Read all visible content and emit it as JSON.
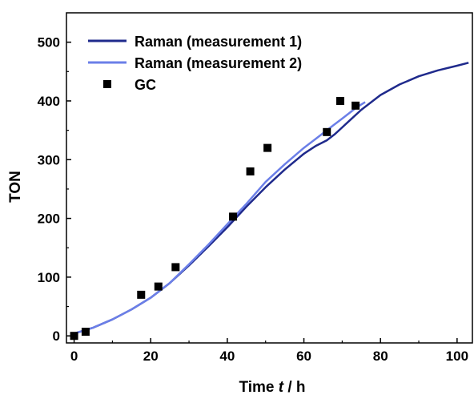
{
  "chart_data": {
    "type": "line",
    "xlabel_prefix": "Time ",
    "xlabel_var": "t",
    "xlabel_suffix": " / h",
    "ylabel": "TON",
    "xlim": [
      -2,
      104
    ],
    "ylim": [
      -12,
      550
    ],
    "xticks": [
      0,
      20,
      40,
      60,
      80,
      100
    ],
    "yticks": [
      0,
      100,
      200,
      300,
      400,
      500
    ],
    "grid": false,
    "legend_position": "top-left",
    "series": [
      {
        "name": "Raman (measurement 1)",
        "style": "line",
        "color": "#1f2a8c",
        "x": [
          0,
          5,
          10,
          15,
          20,
          25,
          30,
          35,
          40,
          45,
          50,
          55,
          60,
          63,
          66,
          68,
          70,
          72,
          75,
          80,
          85,
          90,
          95,
          100,
          103
        ],
        "y": [
          4,
          14,
          28,
          45,
          65,
          90,
          120,
          152,
          185,
          220,
          253,
          283,
          310,
          323,
          333,
          343,
          355,
          367,
          385,
          410,
          428,
          442,
          452,
          460,
          465
        ]
      },
      {
        "name": "Raman (measurement 2)",
        "style": "line",
        "color": "#6b7fe8",
        "x": [
          0,
          5,
          10,
          15,
          20,
          25,
          30,
          35,
          40,
          45,
          50,
          55,
          60,
          63,
          66,
          68,
          70,
          72,
          74,
          76
        ],
        "y": [
          4,
          14,
          28,
          45,
          65,
          90,
          122,
          155,
          190,
          225,
          262,
          292,
          320,
          335,
          350,
          360,
          370,
          380,
          390,
          398
        ]
      },
      {
        "name": "GC",
        "style": "scatter",
        "color": "#000000",
        "x": [
          0,
          3,
          17.5,
          22,
          26.5,
          41.5,
          46,
          50.5,
          66,
          69.5,
          73.5
        ],
        "y": [
          0,
          7,
          70,
          84,
          117,
          203,
          280,
          320,
          347,
          400,
          392
        ]
      }
    ]
  }
}
